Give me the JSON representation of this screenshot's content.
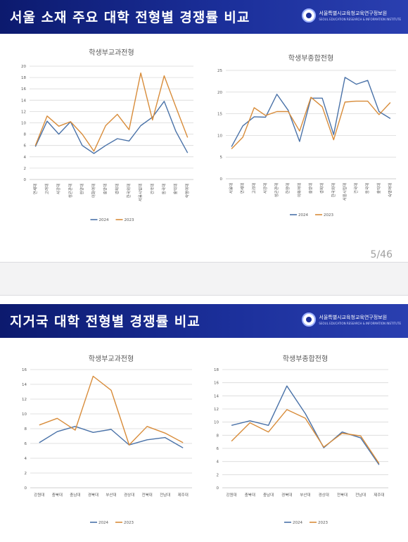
{
  "slides": [
    {
      "title": "서울 소재 주요 대학 전형별 경쟁률 비교",
      "org_name": "서울특별시교육청교육연구정보원",
      "org_en": "SEOUL EDUCATION RESEARCH & INFORMATION INSTITUTE",
      "page": "5/46"
    },
    {
      "title": "지거국 대학 전형별 경쟁률 비교",
      "org_name": "서울특별시교육청교육연구정보원",
      "org_en": "SEOUL EDUCATION RESEARCH & INFORMATION INSTITUTE"
    }
  ],
  "colors": {
    "y2024": "#4a72a8",
    "y2023": "#d88c3a",
    "grid": "#d9d9d9",
    "axis": "#bfbfbf",
    "text": "#595959"
  },
  "chart_data": [
    {
      "type": "line",
      "title": "학생부교과전형",
      "categories": [
        "연세대",
        "고려대",
        "서강대",
        "성균관대",
        "한양대",
        "이화여대",
        "중앙대",
        "경희대",
        "한국외대",
        "서울시립대",
        "건국대",
        "동국대",
        "홍익대",
        "숙명여대"
      ],
      "ylim": [
        0,
        20
      ],
      "yticks": [
        0,
        2,
        4,
        6,
        8,
        10,
        12,
        14,
        16,
        18,
        20
      ],
      "series": [
        {
          "name": "2024",
          "values": [
            5.8,
            10.3,
            8.0,
            10.2,
            6.0,
            4.6,
            6.0,
            7.2,
            6.8,
            9.5,
            11.0,
            13.8,
            8.5,
            4.7
          ]
        },
        {
          "name": "2023",
          "values": [
            6.0,
            11.2,
            9.4,
            10.2,
            8.0,
            5.0,
            9.5,
            11.5,
            8.8,
            18.8,
            10.5,
            18.3,
            12.8,
            7.4
          ]
        }
      ],
      "legend": "bottom"
    },
    {
      "type": "line",
      "title": "학생부종합전형",
      "categories": [
        "서울대",
        "연세대",
        "고려대",
        "서강대",
        "성균관대",
        "한양대",
        "이화여대",
        "중앙대",
        "경희대",
        "한국외대",
        "서울시립대",
        "건국대",
        "동국대",
        "홍익대",
        "숙명여대"
      ],
      "ylim": [
        0,
        25
      ],
      "yticks": [
        0,
        5,
        10,
        15,
        20,
        25
      ],
      "series": [
        {
          "name": "2024",
          "values": [
            7.4,
            12.2,
            14.3,
            14.2,
            19.5,
            15.8,
            8.6,
            18.6,
            18.6,
            10.2,
            23.4,
            21.8,
            22.7,
            15.5,
            13.9
          ]
        },
        {
          "name": "2023",
          "values": [
            6.9,
            9.6,
            16.4,
            14.6,
            15.5,
            15.5,
            11.0,
            18.8,
            16.6,
            9.0,
            17.7,
            17.9,
            17.9,
            14.8,
            17.6
          ]
        }
      ],
      "legend": "bottom"
    },
    {
      "type": "line",
      "title": "학생부교과전형",
      "categories": [
        "강원대",
        "충북대",
        "충남대",
        "경북대",
        "부산대",
        "경상대",
        "전북대",
        "전남대",
        "제주대"
      ],
      "ylim": [
        0,
        16
      ],
      "yticks": [
        0,
        2,
        4,
        6,
        8,
        10,
        12,
        14,
        16
      ],
      "series": [
        {
          "name": "2024",
          "values": [
            6.1,
            7.6,
            8.3,
            7.5,
            7.9,
            5.8,
            6.5,
            6.8,
            5.4
          ]
        },
        {
          "name": "2023",
          "values": [
            8.5,
            9.4,
            7.8,
            15.1,
            13.2,
            5.8,
            8.3,
            7.4,
            6.1
          ]
        }
      ],
      "legend": "bottom"
    },
    {
      "type": "line",
      "title": "학생부종합전형",
      "categories": [
        "강원대",
        "충북대",
        "충남대",
        "경북대",
        "부산대",
        "경상대",
        "전북대",
        "전남대",
        "제주대"
      ],
      "ylim": [
        0,
        18
      ],
      "yticks": [
        0,
        2,
        4,
        6,
        8,
        10,
        12,
        14,
        16,
        18
      ],
      "series": [
        {
          "name": "2024",
          "values": [
            9.5,
            10.2,
            9.5,
            15.5,
            11.3,
            6.1,
            8.5,
            7.6,
            3.5
          ]
        },
        {
          "name": "2023",
          "values": [
            7.1,
            9.9,
            8.5,
            11.9,
            10.6,
            6.2,
            8.3,
            7.9,
            3.7
          ]
        }
      ],
      "legend": "bottom"
    }
  ]
}
